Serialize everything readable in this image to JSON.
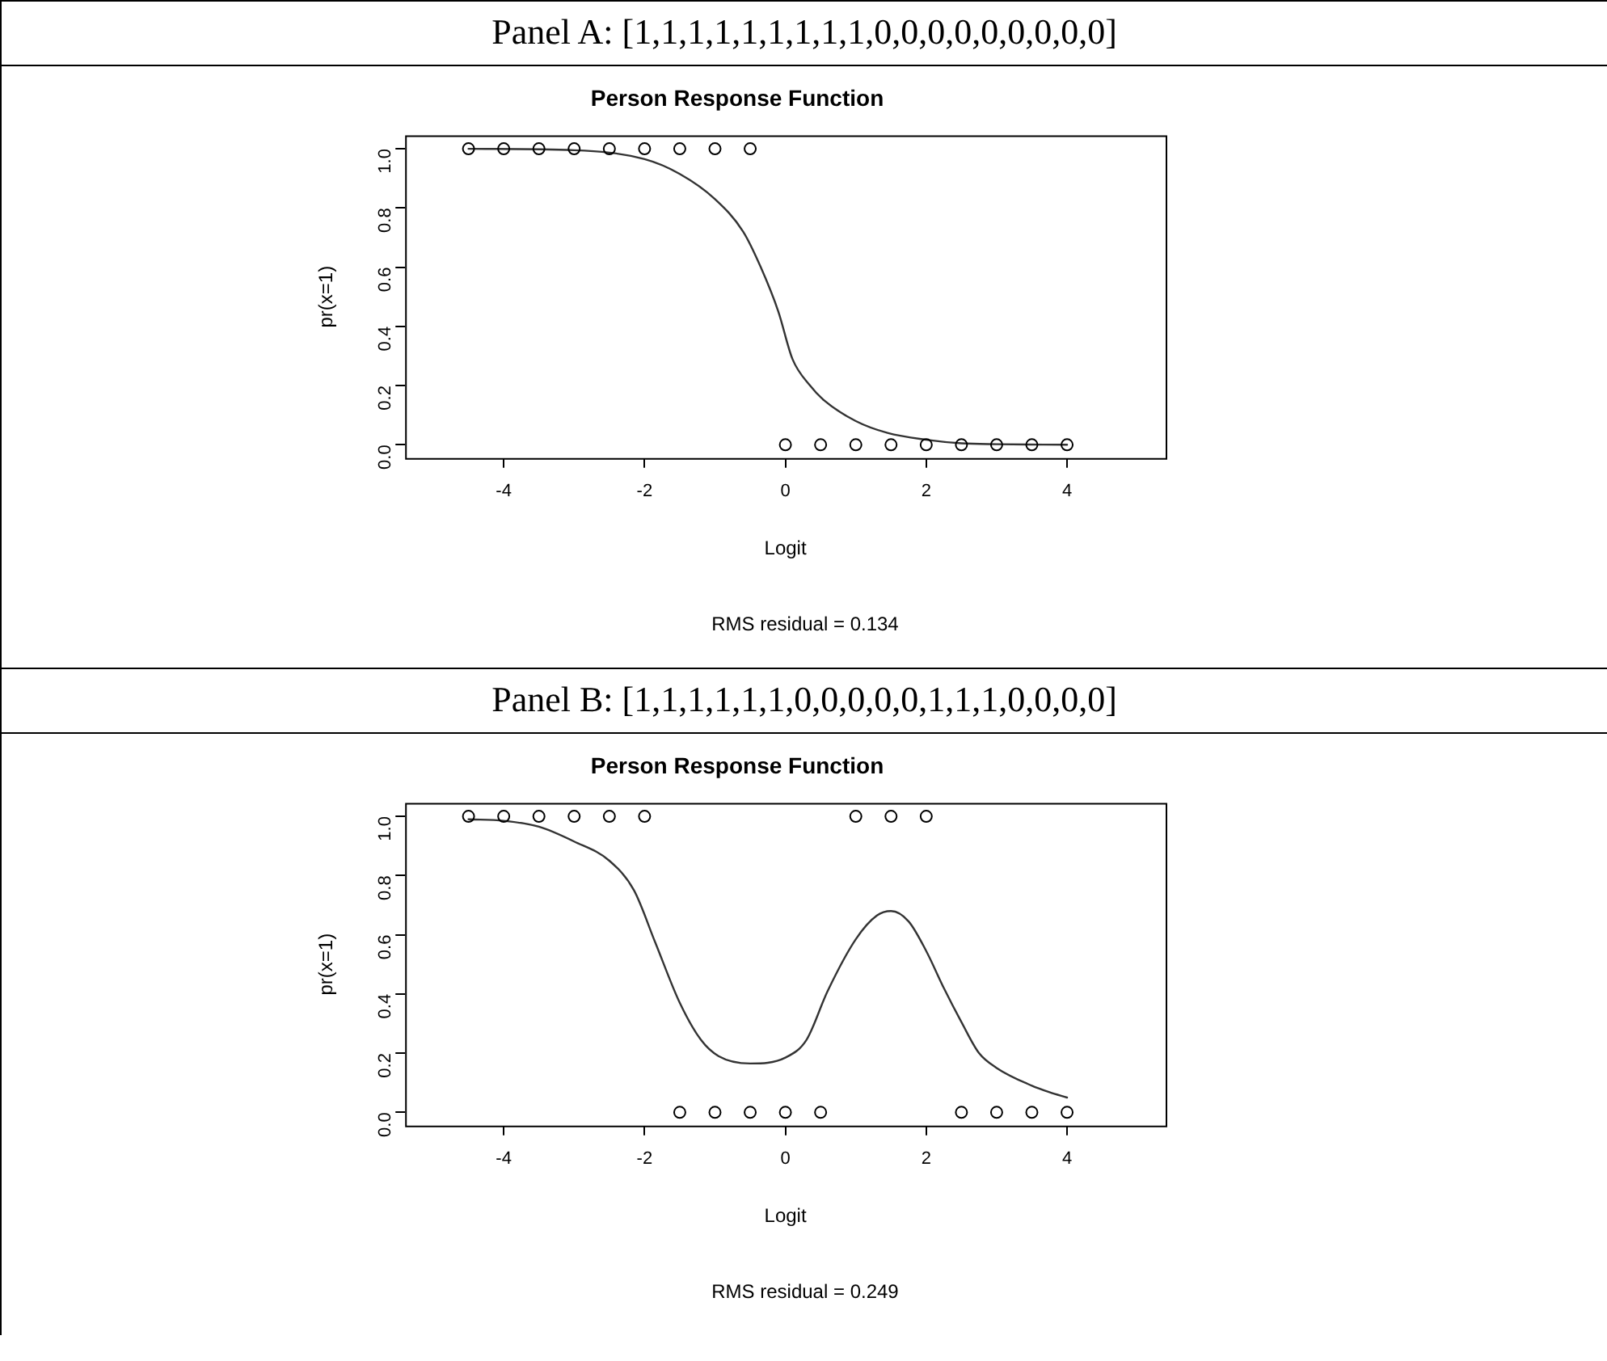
{
  "chart_data": [
    {
      "type": "scatter",
      "title": "Person Response Function",
      "xlabel": "Logit",
      "ylabel": "pr(x=1)",
      "annotations": [
        "Panel A: [1,1,1,1,1,1,1,1,1,0,0,0,0,0,0,0,0,0]",
        "RMS residual = 0.134"
      ],
      "xlim": [
        -5.4,
        5.4
      ],
      "xticks": [
        -4,
        -2,
        0,
        2,
        4
      ],
      "ylim": [
        -0.045,
        1.045
      ],
      "yticks": [
        {
          "value": 0,
          "label": "0.0"
        },
        {
          "value": 0.2,
          "label": "0.2"
        },
        {
          "value": 0.4,
          "label": "0.4"
        },
        {
          "value": 0.6,
          "label": "0.6"
        },
        {
          "value": 0.8,
          "label": "0.8"
        },
        {
          "value": 1,
          "label": "1.0"
        }
      ],
      "grid": false,
      "legend": false,
      "series": [
        {
          "type": "scatter",
          "marker": "circle",
          "color": "#000000",
          "x": [
            -4.5,
            -4,
            -3.5,
            -3,
            -2.5,
            -2,
            -1.5,
            -1,
            -0.5,
            0,
            0.5,
            1,
            1.5,
            2,
            2.5,
            3,
            3.5,
            4
          ],
          "values": [
            1,
            1,
            1,
            1,
            1,
            1,
            1,
            1,
            1,
            0,
            0,
            0,
            0,
            0,
            0,
            0,
            0,
            0
          ]
        },
        {
          "type": "line",
          "marker": "none",
          "color": "#333333",
          "x": [
            -4.5,
            -3,
            -2,
            -1.5,
            -1,
            -0.6,
            -0.35,
            -0.1,
            0.1,
            0.35,
            0.55,
            1,
            1.45,
            2,
            2.5,
            3,
            4
          ],
          "values": [
            1,
            0.995,
            0.965,
            0.915,
            0.83,
            0.72,
            0.6,
            0.45,
            0.29,
            0.2,
            0.15,
            0.08,
            0.04,
            0.017,
            0.005,
            0.002,
            0
          ]
        }
      ]
    },
    {
      "type": "scatter",
      "title": "Person Response Function",
      "xlabel": "Logit",
      "ylabel": "pr(x=1)",
      "annotations": [
        "Panel B: [1,1,1,1,1,1,0,0,0,0,0,1,1,1,0,0,0,0]",
        "RMS residual = 0.249"
      ],
      "xlim": [
        -5.4,
        5.4
      ],
      "xticks": [
        -4,
        -2,
        0,
        2,
        4
      ],
      "ylim": [
        -0.045,
        1.045
      ],
      "yticks": [
        {
          "value": 0,
          "label": "0.0"
        },
        {
          "value": 0.2,
          "label": "0.2"
        },
        {
          "value": 0.4,
          "label": "0.4"
        },
        {
          "value": 0.6,
          "label": "0.6"
        },
        {
          "value": 0.8,
          "label": "0.8"
        },
        {
          "value": 1,
          "label": "1.0"
        }
      ],
      "grid": false,
      "legend": false,
      "series": [
        {
          "type": "scatter",
          "marker": "circle",
          "color": "#000000",
          "x": [
            -4.5,
            -4,
            -3.5,
            -3,
            -2.5,
            -2,
            -1.5,
            -1,
            -0.5,
            0,
            0.5,
            1,
            1.5,
            2,
            2.5,
            3,
            3.5,
            4
          ],
          "values": [
            1,
            1,
            1,
            1,
            1,
            1,
            0,
            0,
            0,
            0,
            0,
            1,
            1,
            1,
            0,
            0,
            0,
            0
          ]
        },
        {
          "type": "line",
          "marker": "none",
          "color": "#333333",
          "x": [
            -4.5,
            -4,
            -3.5,
            -3,
            -2.5,
            -2.15,
            -1.85,
            -1.5,
            -1.2,
            -0.95,
            -0.5,
            0,
            0.3,
            0.6,
            1,
            1.3,
            1.5,
            1.75,
            2,
            2.25,
            2.5,
            2.75,
            3,
            3.5,
            3.75,
            4
          ],
          "values": [
            0.99,
            0.985,
            0.965,
            0.915,
            0.85,
            0.75,
            0.575,
            0.37,
            0.245,
            0.19,
            0.165,
            0.185,
            0.245,
            0.41,
            0.585,
            0.665,
            0.68,
            0.645,
            0.545,
            0.42,
            0.305,
            0.2,
            0.15,
            0.09,
            0.068,
            0.05
          ]
        }
      ]
    }
  ]
}
